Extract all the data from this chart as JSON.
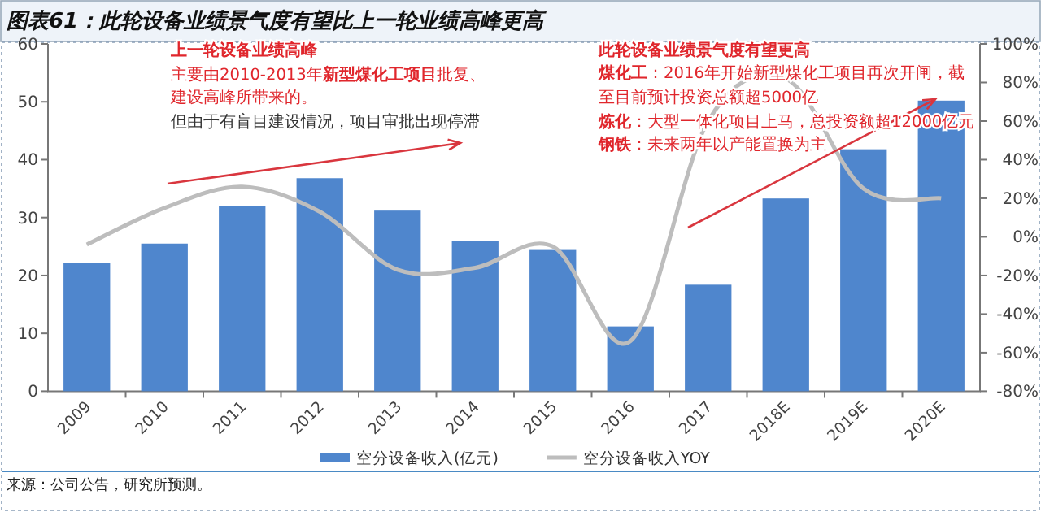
{
  "chart_data": {
    "type": "bar",
    "title": "图表61：此轮设备业绩景气度有望比上一轮业绩高峰更高",
    "categories": [
      "2009",
      "2010",
      "2011",
      "2012",
      "2013",
      "2014",
      "2015",
      "2016",
      "2017",
      "2018E",
      "2019E",
      "2020E"
    ],
    "series": [
      {
        "name": "空分设备收入(亿元)",
        "color": "#4f86cd",
        "values": [
          22.2,
          25.5,
          32,
          36.8,
          31.2,
          26,
          24.4,
          11.2,
          18.4,
          33.3,
          41.8,
          50.2
        ]
      },
      {
        "name": "空分设备收入YOY",
        "type": "line",
        "axis": "y2",
        "color": "#bdbdbd",
        "values": [
          -4,
          15,
          26,
          13,
          -17,
          -16,
          -5,
          -54,
          60,
          82,
          25,
          20
        ]
      }
    ],
    "ylim": [
      0,
      60
    ],
    "yticks": [
      0,
      10,
      20,
      30,
      40,
      50,
      60
    ],
    "y2lim": [
      -80,
      100
    ],
    "y2ticks": [
      {
        "value": -80,
        "label": "-80%"
      },
      {
        "value": -60,
        "label": "-60%"
      },
      {
        "value": -40,
        "label": "-40%"
      },
      {
        "value": -20,
        "label": "-20%"
      },
      {
        "value": 0,
        "label": "0%"
      },
      {
        "value": 20,
        "label": "20%"
      },
      {
        "value": 40,
        "label": "40%"
      },
      {
        "value": 60,
        "label": "60%"
      },
      {
        "value": 80,
        "label": "80%"
      },
      {
        "value": 100,
        "label": "100%"
      }
    ],
    "legend": "bottom",
    "annotations": [
      "上一轮设备业绩高峰",
      "主要由2010-2013年**新型煤化工项目**批复、",
      "建设高峰所带来的。",
      "但由于有盲目建设情况，项目审批出现停滞",
      "此轮设备业绩景气度有望更高",
      "**煤化工**：2016年开始新型煤化工项目再次开闸，截",
      "至目前预计投资总额超5000亿",
      "**炼化**：大型一体化项目上马，总投资额超12000亿元",
      "**钢铁**：未来两年以产能置换为主",
      "来源：公司公告，研究所预测。"
    ]
  }
}
